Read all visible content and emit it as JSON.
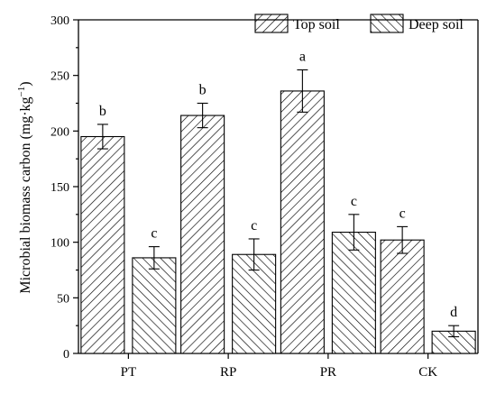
{
  "chart_data": {
    "type": "bar",
    "categories": [
      "PT",
      "RP",
      "PR",
      "CK"
    ],
    "series": [
      {
        "name": "Top soil",
        "values": [
          195,
          214,
          236,
          102
        ],
        "errors": [
          11,
          11,
          19,
          12
        ],
        "letters": [
          "b",
          "b",
          "a",
          "c"
        ],
        "pattern": "forward-hatch"
      },
      {
        "name": "Deep soil",
        "values": [
          86,
          89,
          109,
          20
        ],
        "errors": [
          10,
          14,
          16,
          5
        ],
        "letters": [
          "c",
          "c",
          "c",
          "d"
        ],
        "pattern": "back-hatch"
      }
    ],
    "xlabel": "",
    "ylabel": "Microbial biomass carbon (mg·kg",
    "ylabel_superscript": "−1",
    "ylabel_close": ")",
    "ylim": [
      0,
      300
    ],
    "yticks": [
      "0",
      "50",
      "100",
      "150",
      "200",
      "250",
      "300"
    ],
    "grid": false,
    "legend_position": "top-right"
  }
}
